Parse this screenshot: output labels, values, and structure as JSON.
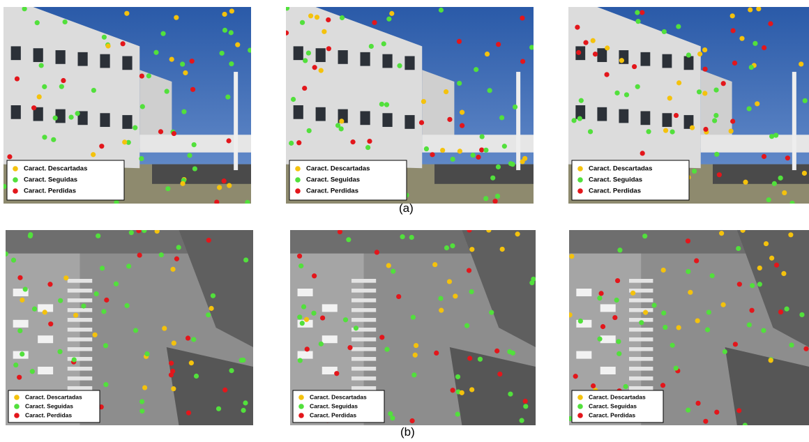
{
  "figures": [
    {
      "caption": "(a)",
      "panels": [
        {
          "legend": [
            "Caract. Descartadas",
            "Caract. Seguidas",
            "Caract. Perdidas"
          ]
        },
        {
          "legend": [
            "Caract. Descartadas",
            "Caract. Seguidas",
            "Caract. Perdidas"
          ]
        },
        {
          "legend": [
            "Caract. Descartadas",
            "Caract. Seguidas",
            "Caract. Perdidas"
          ]
        }
      ]
    },
    {
      "caption": "(b)",
      "panels": [
        {
          "legend": [
            "Caract. Descartadas",
            "Caract. Seguidas",
            "Caract. Perdidas"
          ]
        },
        {
          "legend": [
            "Caract. Descartadas",
            "Caract. Seguidas",
            "Caract. Perdidas"
          ]
        },
        {
          "legend": [
            "Caract. Descartadas",
            "Caract. Seguidas",
            "Caract. Perdidas"
          ]
        }
      ]
    }
  ]
}
